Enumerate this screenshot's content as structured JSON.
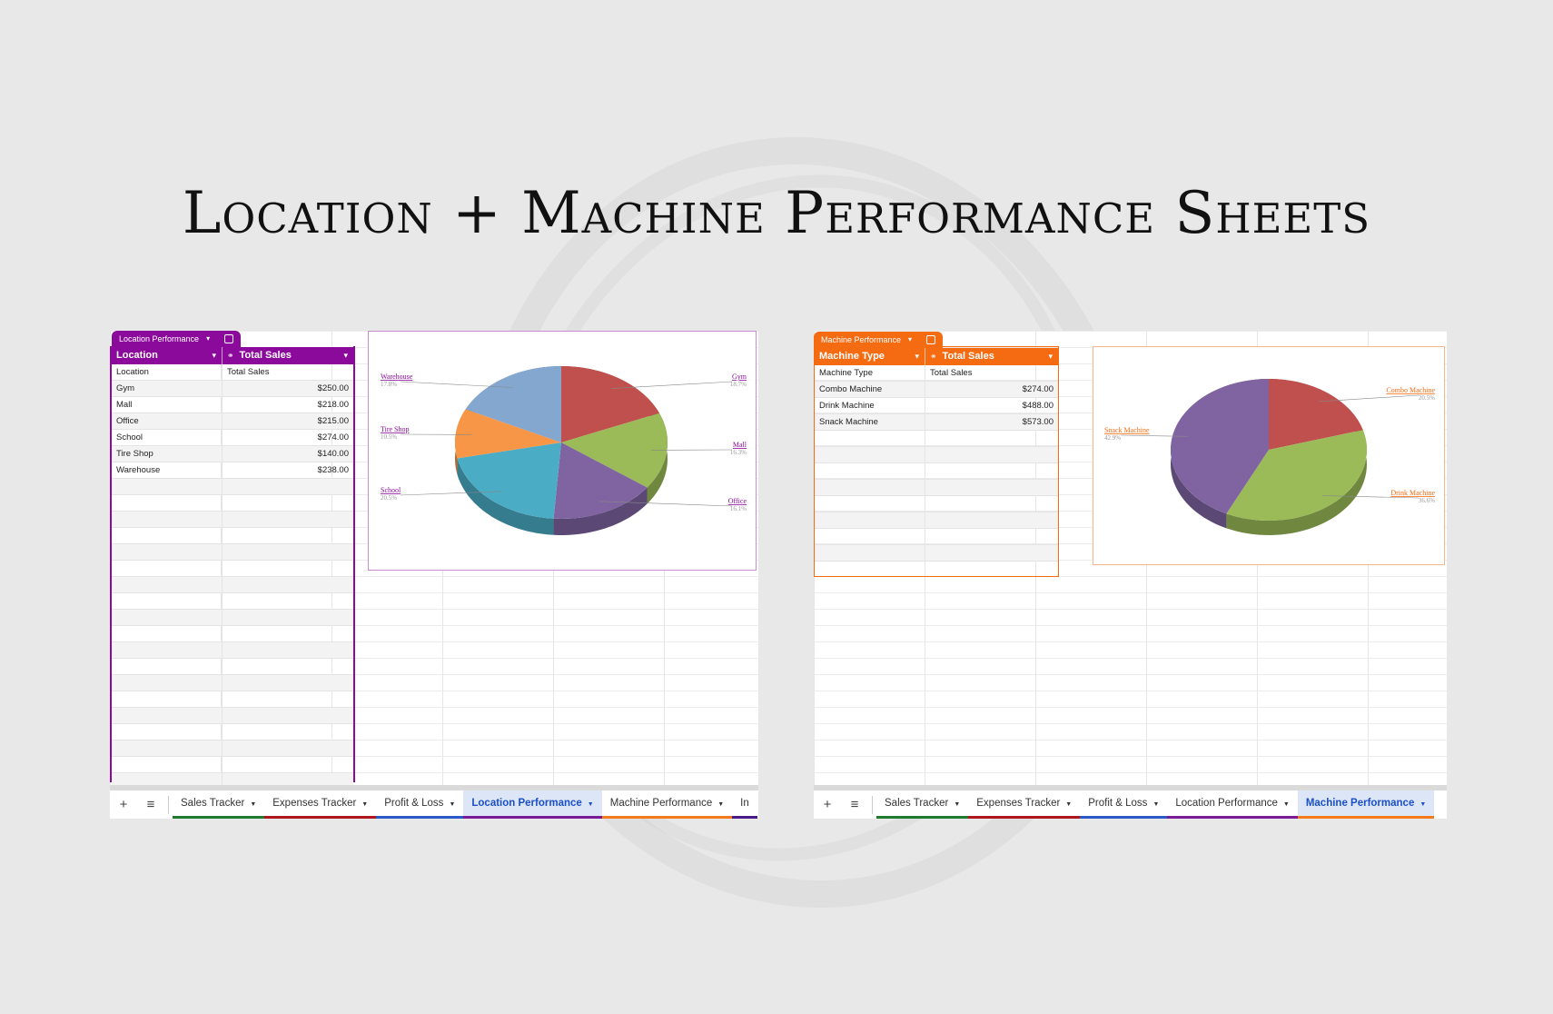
{
  "title": "Location + Machine Performance Sheets",
  "left": {
    "accent": "#8b0a9b",
    "table_tag": "Location Performance",
    "headers": [
      "Location",
      "Total Sales"
    ],
    "subheader": [
      "Location",
      "Total Sales"
    ],
    "rows": [
      [
        "Gym",
        "$250.00"
      ],
      [
        "Mall",
        "$218.00"
      ],
      [
        "Office",
        "$215.00"
      ],
      [
        "School",
        "$274.00"
      ],
      [
        "Tire Shop",
        "$140.00"
      ],
      [
        "Warehouse",
        "$238.00"
      ]
    ],
    "tabs": [
      {
        "label": "Sales Tracker",
        "color": "#1e7b2e"
      },
      {
        "label": "Expenses Tracker",
        "color": "#b0151b"
      },
      {
        "label": "Profit & Loss",
        "color": "#2a5ac8"
      },
      {
        "label": "Location Performance",
        "color": "#7a1a96",
        "active": true
      },
      {
        "label": "Machine Performance",
        "color": "#f47a1b"
      },
      {
        "label": "In",
        "color": "#4a1a8a"
      }
    ]
  },
  "right": {
    "accent": "#f46b12",
    "table_tag": "Machine Performance",
    "headers": [
      "Machine Type",
      "Total Sales"
    ],
    "subheader": [
      "Machine Type",
      "Total Sales"
    ],
    "rows": [
      [
        "Combo Machine",
        "$274.00"
      ],
      [
        "Drink Machine",
        "$488.00"
      ],
      [
        "Snack Machine",
        "$573.00"
      ]
    ],
    "tabs": [
      {
        "label": "Sales Tracker",
        "color": "#1e7b2e"
      },
      {
        "label": "Expenses Tracker",
        "color": "#b0151b"
      },
      {
        "label": "Profit & Loss",
        "color": "#2a5ac8"
      },
      {
        "label": "Location Performance",
        "color": "#7a1a96"
      },
      {
        "label": "Machine Performance",
        "color": "#f47a1b",
        "active": true
      }
    ]
  },
  "tab_controls": {
    "add": "+",
    "menu": "≡"
  },
  "chart_data": [
    {
      "type": "pie",
      "title": "",
      "categories": [
        "Gym",
        "Mall",
        "Office",
        "School",
        "Tire Shop",
        "Warehouse"
      ],
      "values": [
        18.7,
        16.3,
        16.1,
        20.5,
        10.5,
        17.8
      ],
      "labels": [
        "18.7%",
        "16.3%",
        "16.1%",
        "20.5%",
        "10.5%",
        "17.8%"
      ],
      "colors": [
        "#c0504d",
        "#9bbb59",
        "#8064a2",
        "#4bacc6",
        "#f79646",
        "#84a7d0"
      ],
      "label_color": "#8b0a9b"
    },
    {
      "type": "pie",
      "title": "",
      "categories": [
        "Combo Machine",
        "Drink Machine",
        "Snack Machine"
      ],
      "values": [
        20.5,
        36.6,
        42.9
      ],
      "labels": [
        "20.5%",
        "36.6%",
        "42.9%"
      ],
      "colors": [
        "#c0504d",
        "#9bbb59",
        "#8064a2"
      ],
      "label_color": "#f46b12"
    }
  ]
}
